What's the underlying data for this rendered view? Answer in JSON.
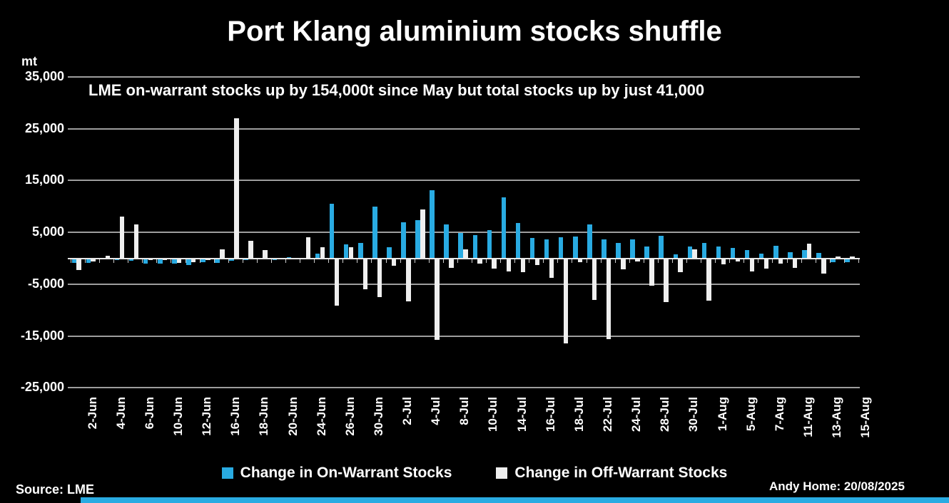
{
  "title": "Port Klang aluminium stocks shuffle",
  "subtitle": "LME on-warrant stocks up by 154,000t  since May but total stocks up by just 41,000",
  "y_axis": {
    "unit_label": "mt",
    "ticks": [
      {
        "value": 35000,
        "label": "35,000"
      },
      {
        "value": 25000,
        "label": "25,000"
      },
      {
        "value": 15000,
        "label": "15,000"
      },
      {
        "value": 5000,
        "label": "5,000"
      },
      {
        "value": -5000,
        "label": "-5,000"
      },
      {
        "value": -15000,
        "label": "-15,000"
      },
      {
        "value": -25000,
        "label": "-25,000"
      }
    ]
  },
  "legend": [
    {
      "label": "Change in On-Warrant Stocks",
      "color": "#29abe2"
    },
    {
      "label": "Change in Off-Warrant Stocks",
      "color": "#efefef"
    }
  ],
  "footer": {
    "source": "Source: LME",
    "credit": "Andy Home: 20/08/2025"
  },
  "colors": {
    "background": "#000000",
    "on_warrant": "#29abe2",
    "off_warrant": "#efefef",
    "gridline": "#9d9d9d",
    "text": "#ffffff",
    "footer_strip": "#29abe2"
  },
  "chart_data": {
    "type": "bar",
    "title": "Port Klang aluminium stocks shuffle",
    "subtitle": "LME on-warrant stocks up by 154,000t  since May but total stocks up by just 41,000",
    "ylabel": "mt",
    "ylim": [
      -25000,
      35000
    ],
    "y_tick_step": 10000,
    "grid": true,
    "legend_position": "bottom",
    "x_tick_every": 2,
    "categories": [
      "2-Jun",
      "3-Jun",
      "4-Jun",
      "5-Jun",
      "6-Jun",
      "9-Jun",
      "10-Jun",
      "11-Jun",
      "12-Jun",
      "13-Jun",
      "16-Jun",
      "17-Jun",
      "18-Jun",
      "19-Jun",
      "20-Jun",
      "23-Jun",
      "24-Jun",
      "25-Jun",
      "26-Jun",
      "27-Jun",
      "30-Jun",
      "1-Jul",
      "2-Jul",
      "3-Jul",
      "4-Jul",
      "7-Jul",
      "8-Jul",
      "9-Jul",
      "10-Jul",
      "11-Jul",
      "14-Jul",
      "15-Jul",
      "16-Jul",
      "17-Jul",
      "18-Jul",
      "21-Jul",
      "22-Jul",
      "23-Jul",
      "24-Jul",
      "25-Jul",
      "28-Jul",
      "29-Jul",
      "30-Jul",
      "31-Jul",
      "1-Aug",
      "4-Aug",
      "5-Aug",
      "6-Aug",
      "7-Aug",
      "8-Aug",
      "11-Aug",
      "12-Aug",
      "13-Aug",
      "14-Aug",
      "15-Aug"
    ],
    "x_tick_labels": [
      "2-Jun",
      "4-Jun",
      "6-Jun",
      "10-Jun",
      "12-Jun",
      "16-Jun",
      "18-Jun",
      "20-Jun",
      "24-Jun",
      "26-Jun",
      "30-Jun",
      "2-Jul",
      "4-Jul",
      "8-Jul",
      "10-Jul",
      "14-Jul",
      "16-Jul",
      "18-Jul",
      "22-Jul",
      "24-Jul",
      "28-Jul",
      "30-Jul",
      "1-Aug",
      "5-Aug",
      "7-Aug",
      "11-Aug",
      "13-Aug",
      "15-Aug"
    ],
    "series": [
      {
        "name": "Change in On-Warrant Stocks",
        "color": "#29abe2",
        "values": [
          -900,
          -900,
          0,
          -400,
          -500,
          -1100,
          -1100,
          -1000,
          -1300,
          -800,
          -900,
          -500,
          -300,
          0,
          -400,
          200,
          0,
          900,
          10500,
          2650,
          2900,
          10000,
          2200,
          7000,
          7300,
          13200,
          6500,
          4900,
          4500,
          5400,
          11700,
          6800,
          3900,
          3700,
          4000,
          4200,
          6500,
          3600,
          2900,
          3600,
          2300,
          4400,
          800,
          2300,
          3000,
          2300,
          2000,
          1600,
          900,
          2400,
          1200,
          1600,
          1100,
          -700,
          -800
        ]
      },
      {
        "name": "Change in Off-Warrant Stocks",
        "color": "#efefef",
        "values": [
          -2300,
          -650,
          550,
          8000,
          6500,
          -400,
          -300,
          -900,
          -700,
          -300,
          1750,
          27000,
          3400,
          1550,
          0,
          0,
          4000,
          2100,
          -9200,
          2200,
          -6000,
          -7500,
          -1500,
          -8300,
          9400,
          -15700,
          -1800,
          1750,
          -1000,
          -2000,
          -2600,
          -2700,
          -1300,
          -3800,
          -16500,
          -700,
          -8000,
          -15600,
          -2200,
          -600,
          -5300,
          -8500,
          -2700,
          1750,
          -8200,
          -1200,
          -650,
          -2500,
          -2000,
          -1000,
          -1900,
          2800,
          -2900,
          300,
          400
        ]
      }
    ]
  }
}
